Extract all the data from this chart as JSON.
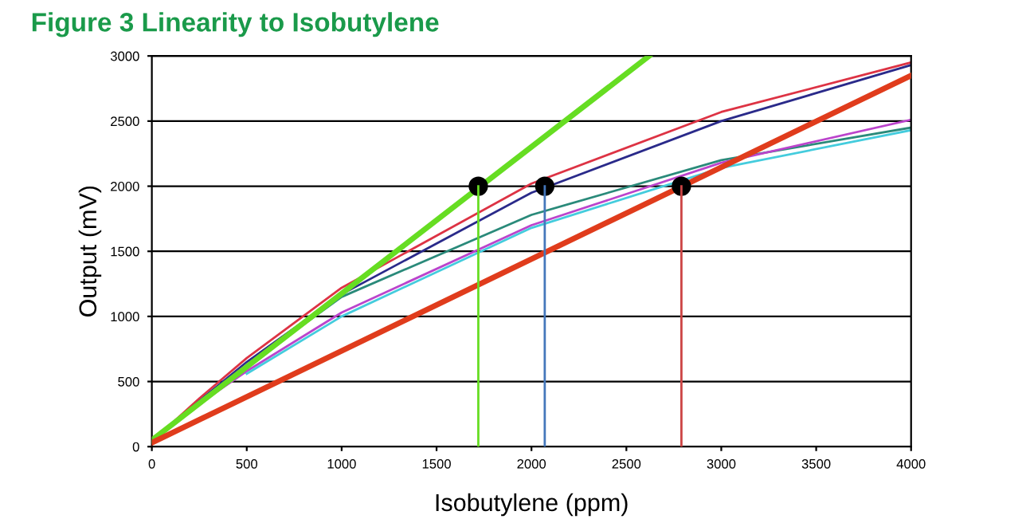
{
  "chart_data": {
    "type": "line",
    "title": "Figure 3 Linearity to Isobutylene",
    "xlabel": "Isobutylene (ppm)",
    "ylabel": "Output (mV)",
    "xlim": [
      0,
      4000
    ],
    "xticks": [
      0,
      500,
      1000,
      1500,
      2000,
      2500,
      3000,
      3500,
      4000
    ],
    "ylim": [
      0,
      3000
    ],
    "yticks": [
      0,
      500,
      1000,
      1500,
      2000,
      2500,
      3000
    ],
    "grid": "y",
    "legend": false,
    "series": [
      {
        "color": "#66dd22",
        "x": [
          0,
          2620
        ],
        "values": [
          50,
          3000
        ]
      },
      {
        "color": "#e03c1c",
        "x": [
          0,
          4000
        ],
        "values": [
          30,
          2850
        ]
      },
      {
        "color": "#dd3344",
        "x": [
          0,
          250,
          500,
          1000,
          2000,
          3000,
          4000
        ],
        "values": [
          40,
          370,
          680,
          1220,
          2020,
          2570,
          2950
        ]
      },
      {
        "color": "#2a2a8a",
        "x": [
          0,
          250,
          500,
          1000,
          2000,
          3000,
          4000
        ],
        "values": [
          40,
          350,
          650,
          1170,
          1950,
          2500,
          2930
        ]
      },
      {
        "color": "#2a8a7a",
        "x": [
          0,
          250,
          500,
          1000,
          2000,
          3000,
          4000
        ],
        "values": [
          40,
          340,
          620,
          1150,
          1780,
          2200,
          2450
        ]
      },
      {
        "color": "#bb44cc",
        "x": [
          0,
          250,
          500,
          1000,
          2000,
          3000,
          4000
        ],
        "values": [
          40,
          330,
          580,
          1030,
          1700,
          2180,
          2510
        ]
      },
      {
        "color": "#44ccdd",
        "x": [
          500,
          1000,
          2000,
          3000,
          4000
        ],
        "values": [
          560,
          1000,
          1680,
          2140,
          2430
        ]
      },
      {
        "color": "#66dd22",
        "x": [
          1720,
          1720
        ],
        "values": [
          0,
          2000
        ]
      },
      {
        "color": "#4477bb",
        "x": [
          2070,
          2070
        ],
        "values": [
          0,
          2000
        ]
      },
      {
        "color": "#cc4444",
        "x": [
          2790,
          2790
        ],
        "values": [
          0,
          2000
        ]
      },
      {
        "type": "scatter",
        "color": "#000000",
        "x": [
          1720,
          2070,
          2790
        ],
        "values": [
          2000,
          2000,
          2000
        ]
      }
    ]
  }
}
